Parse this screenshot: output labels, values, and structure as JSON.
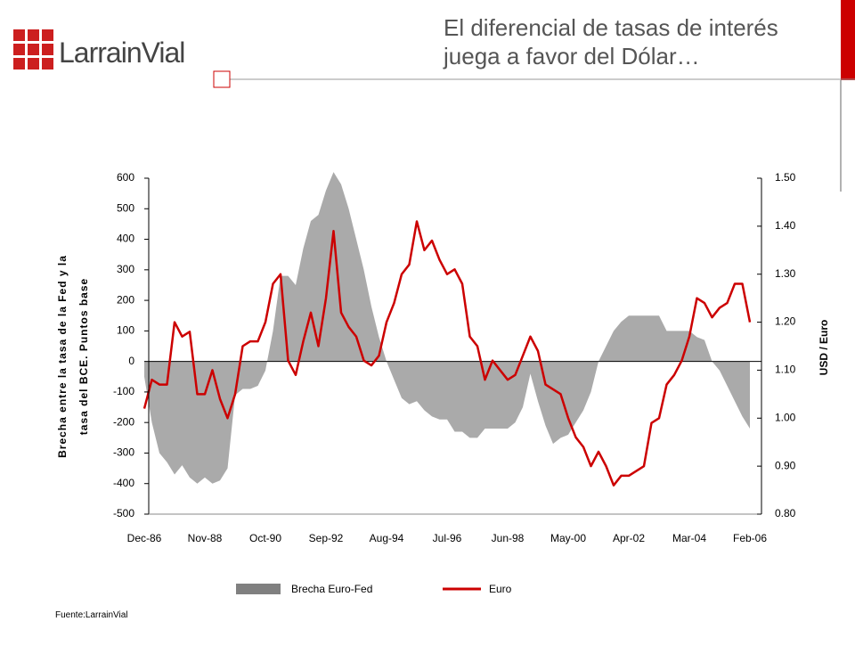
{
  "header": {
    "logo": "LarrainVial",
    "title": [
      "El diferencial de tasas de interés",
      "juega a favor del Dólar…"
    ]
  },
  "chart_data": {
    "type": "combo",
    "ylabel": [
      "Brecha entre la tasa de la Fed y la",
      "tasa del BCE. Puntos base"
    ],
    "y2label": "USD / Euro",
    "categories": [
      "Dec-86",
      null,
      null,
      null,
      null,
      null,
      null,
      null,
      "Nov-88",
      null,
      null,
      null,
      null,
      null,
      null,
      null,
      "Oct-90",
      null,
      null,
      null,
      null,
      null,
      null,
      null,
      "Sep-92",
      null,
      null,
      null,
      null,
      null,
      null,
      null,
      "Aug-94",
      null,
      null,
      null,
      null,
      null,
      null,
      null,
      "Jul-96",
      null,
      null,
      null,
      null,
      null,
      null,
      null,
      "Jun-98",
      null,
      null,
      null,
      null,
      null,
      null,
      null,
      "May-00",
      null,
      null,
      null,
      null,
      null,
      null,
      null,
      "Apr-02",
      null,
      null,
      null,
      null,
      null,
      null,
      null,
      "Mar-04",
      null,
      null,
      null,
      null,
      null,
      null,
      null,
      "Feb-06"
    ],
    "series": [
      {
        "name": "Brecha Euro-Fed",
        "type": "area",
        "color": "#aaaaaa",
        "legend_color": "#808080",
        "values": [
          -50,
          -200,
          -300,
          -330,
          -370,
          -340,
          -380,
          -400,
          -380,
          -400,
          -390,
          -350,
          -110,
          -90,
          -90,
          -80,
          -30,
          100,
          280,
          280,
          250,
          370,
          460,
          480,
          560,
          620,
          580,
          500,
          400,
          300,
          180,
          80,
          0,
          -60,
          -120,
          -140,
          -130,
          -160,
          -180,
          -190,
          -190,
          -230,
          -230,
          -250,
          -250,
          -220,
          -220,
          -220,
          -220,
          -200,
          -150,
          -40,
          -130,
          -210,
          -270,
          -250,
          -240,
          -200,
          -160,
          -100,
          0,
          50,
          100,
          130,
          150,
          150,
          150,
          150,
          150,
          100,
          100,
          100,
          100,
          80,
          70,
          0,
          -30,
          -80,
          -130,
          -180,
          -220
        ]
      },
      {
        "name": "Euro",
        "type": "line",
        "axis": "y2",
        "color": "#cc0000",
        "values": [
          1.02,
          1.08,
          1.07,
          1.07,
          1.2,
          1.17,
          1.18,
          1.05,
          1.05,
          1.1,
          1.04,
          1.0,
          1.05,
          1.15,
          1.16,
          1.16,
          1.2,
          1.28,
          1.3,
          1.12,
          1.09,
          1.16,
          1.22,
          1.15,
          1.25,
          1.39,
          1.22,
          1.19,
          1.17,
          1.12,
          1.11,
          1.13,
          1.2,
          1.24,
          1.3,
          1.32,
          1.41,
          1.35,
          1.37,
          1.33,
          1.3,
          1.31,
          1.28,
          1.17,
          1.15,
          1.08,
          1.12,
          1.1,
          1.08,
          1.09,
          1.13,
          1.17,
          1.14,
          1.07,
          1.06,
          1.05,
          1.0,
          0.96,
          0.94,
          0.9,
          0.93,
          0.9,
          0.86,
          0.88,
          0.88,
          0.89,
          0.9,
          0.99,
          1.0,
          1.07,
          1.09,
          1.12,
          1.17,
          1.25,
          1.24,
          1.21,
          1.23,
          1.24,
          1.28,
          1.28,
          1.2
        ]
      }
    ],
    "ylim": [
      -500,
      600
    ],
    "yticks": [
      -500,
      -400,
      -300,
      -200,
      -100,
      0,
      100,
      200,
      300,
      400,
      500,
      600
    ],
    "y2lim": [
      0.8,
      1.5
    ],
    "y2ticks": [
      {
        "value": 0.8,
        "label": "0.80"
      },
      {
        "value": 0.9,
        "label": "0.90"
      },
      {
        "value": 1.0,
        "label": "1.00"
      },
      {
        "value": 1.1,
        "label": "1.10"
      },
      {
        "value": 1.2,
        "label": "1.20"
      },
      {
        "value": 1.3,
        "label": "1.30"
      },
      {
        "value": 1.4,
        "label": "1.40"
      },
      {
        "value": 1.5,
        "label": "1.50"
      }
    ],
    "source": "Fuente:LarrainVial"
  }
}
